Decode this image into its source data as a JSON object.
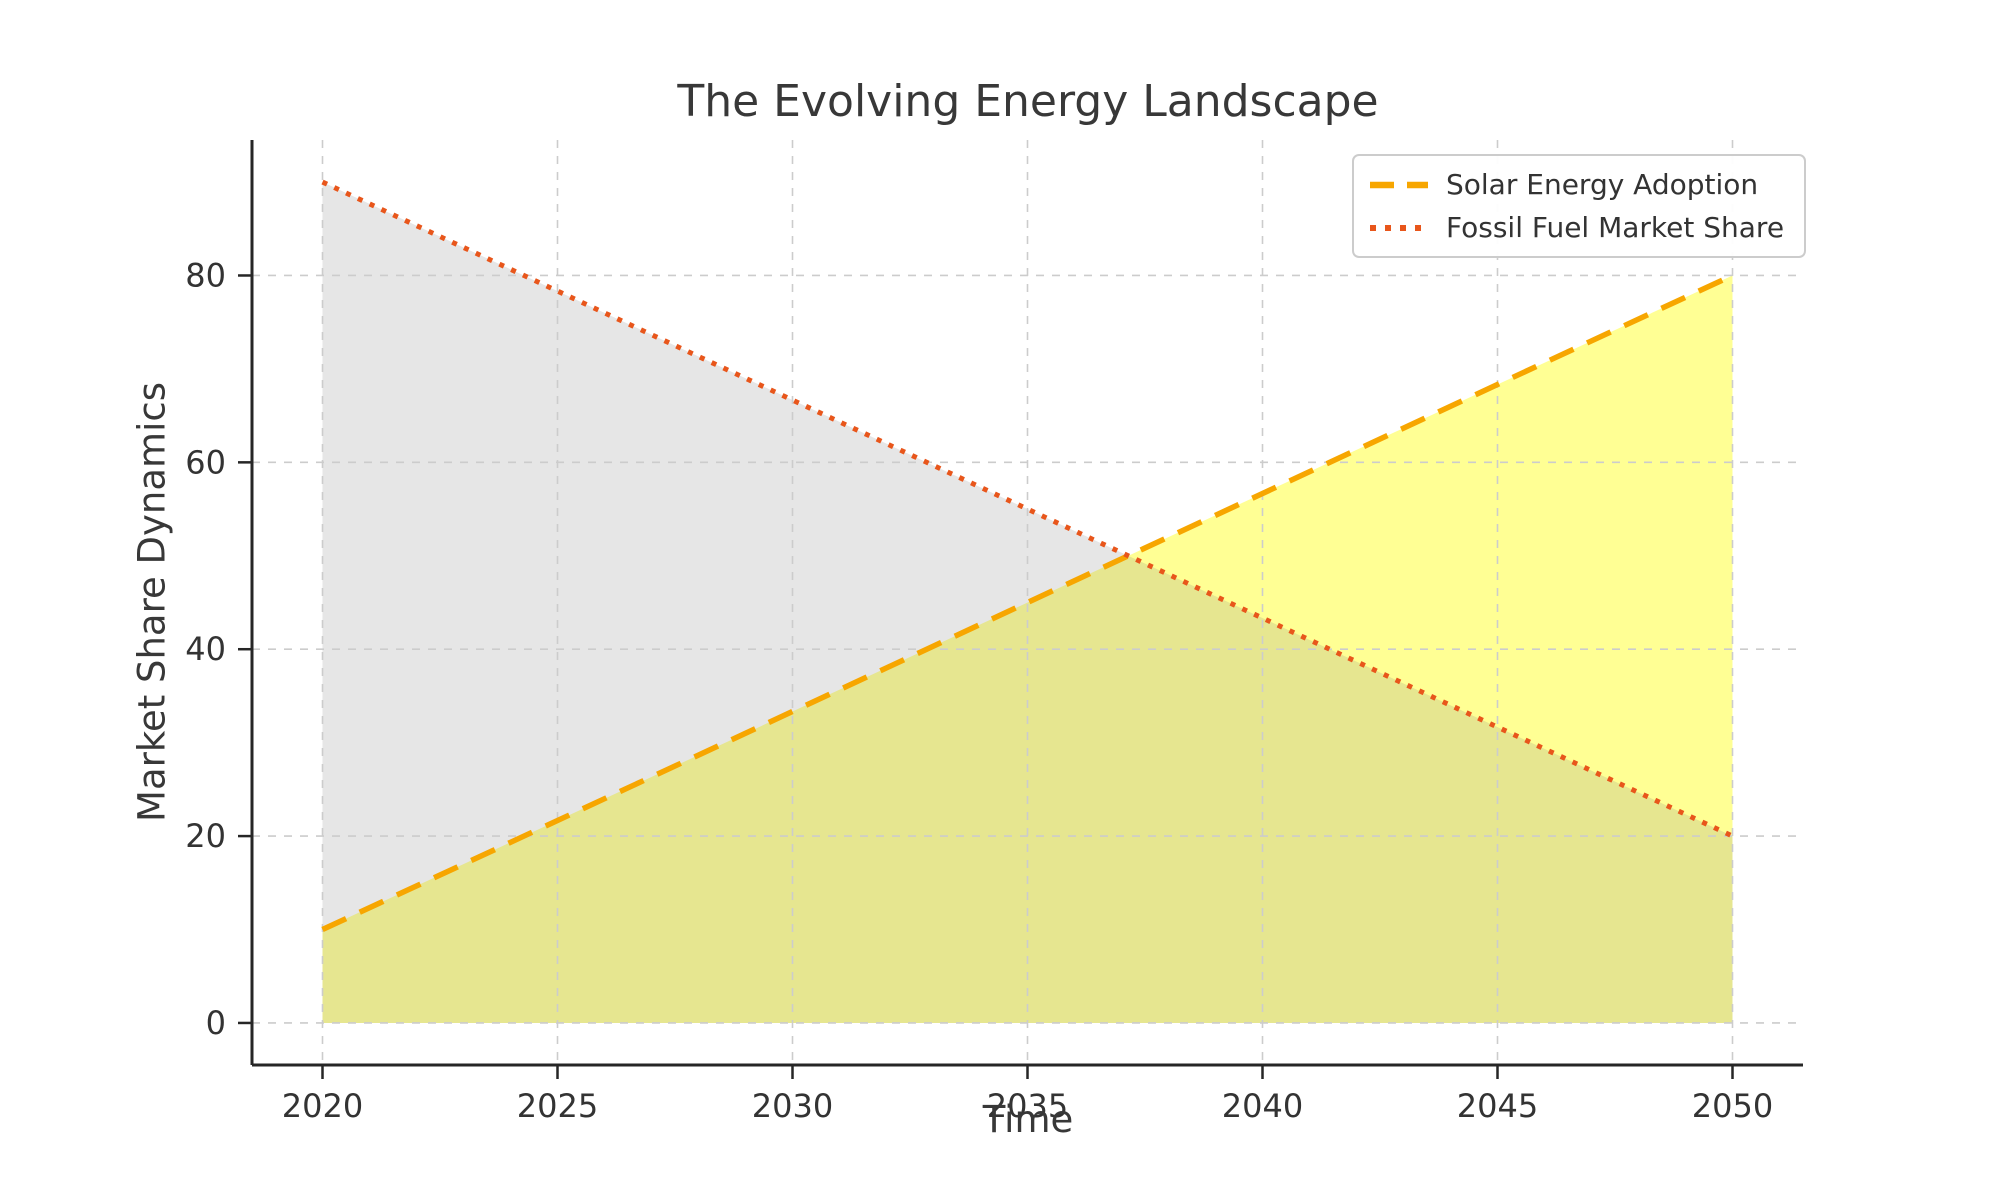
{
  "chart_data": {
    "type": "line",
    "title": "The Evolving Energy Landscape",
    "xlabel": "Time",
    "ylabel": "Market Share Dynamics",
    "x": [
      2020,
      2050
    ],
    "series": [
      {
        "name": "Solar Energy Adoption",
        "values": [
          10,
          80
        ],
        "color": "#F7A600",
        "line_style": "dashed",
        "fill_color": "#FFFF00",
        "fill_opacity": 0.42,
        "fill_to_zero": true
      },
      {
        "name": "Fossil Fuel Market Share",
        "values": [
          90,
          20
        ],
        "color": "#E8561B",
        "line_style": "dotted",
        "fill_color": "#808080",
        "fill_opacity": 0.2,
        "fill_to_zero": true
      }
    ],
    "x_ticks": [
      2020,
      2025,
      2030,
      2035,
      2040,
      2045,
      2050
    ],
    "y_ticks": [
      0,
      20,
      40,
      60,
      80
    ],
    "xlim": [
      2018.5,
      2051.5
    ],
    "ylim": [
      -4.5,
      94.5
    ],
    "grid": true,
    "grid_style": "dashed",
    "legend_position": "upper right"
  },
  "colors": {
    "text": "#383838",
    "tick_text": "#333333",
    "grid": "#cccccc",
    "spine": "#262626",
    "legend_border": "#cccccc",
    "background": "#ffffff"
  }
}
